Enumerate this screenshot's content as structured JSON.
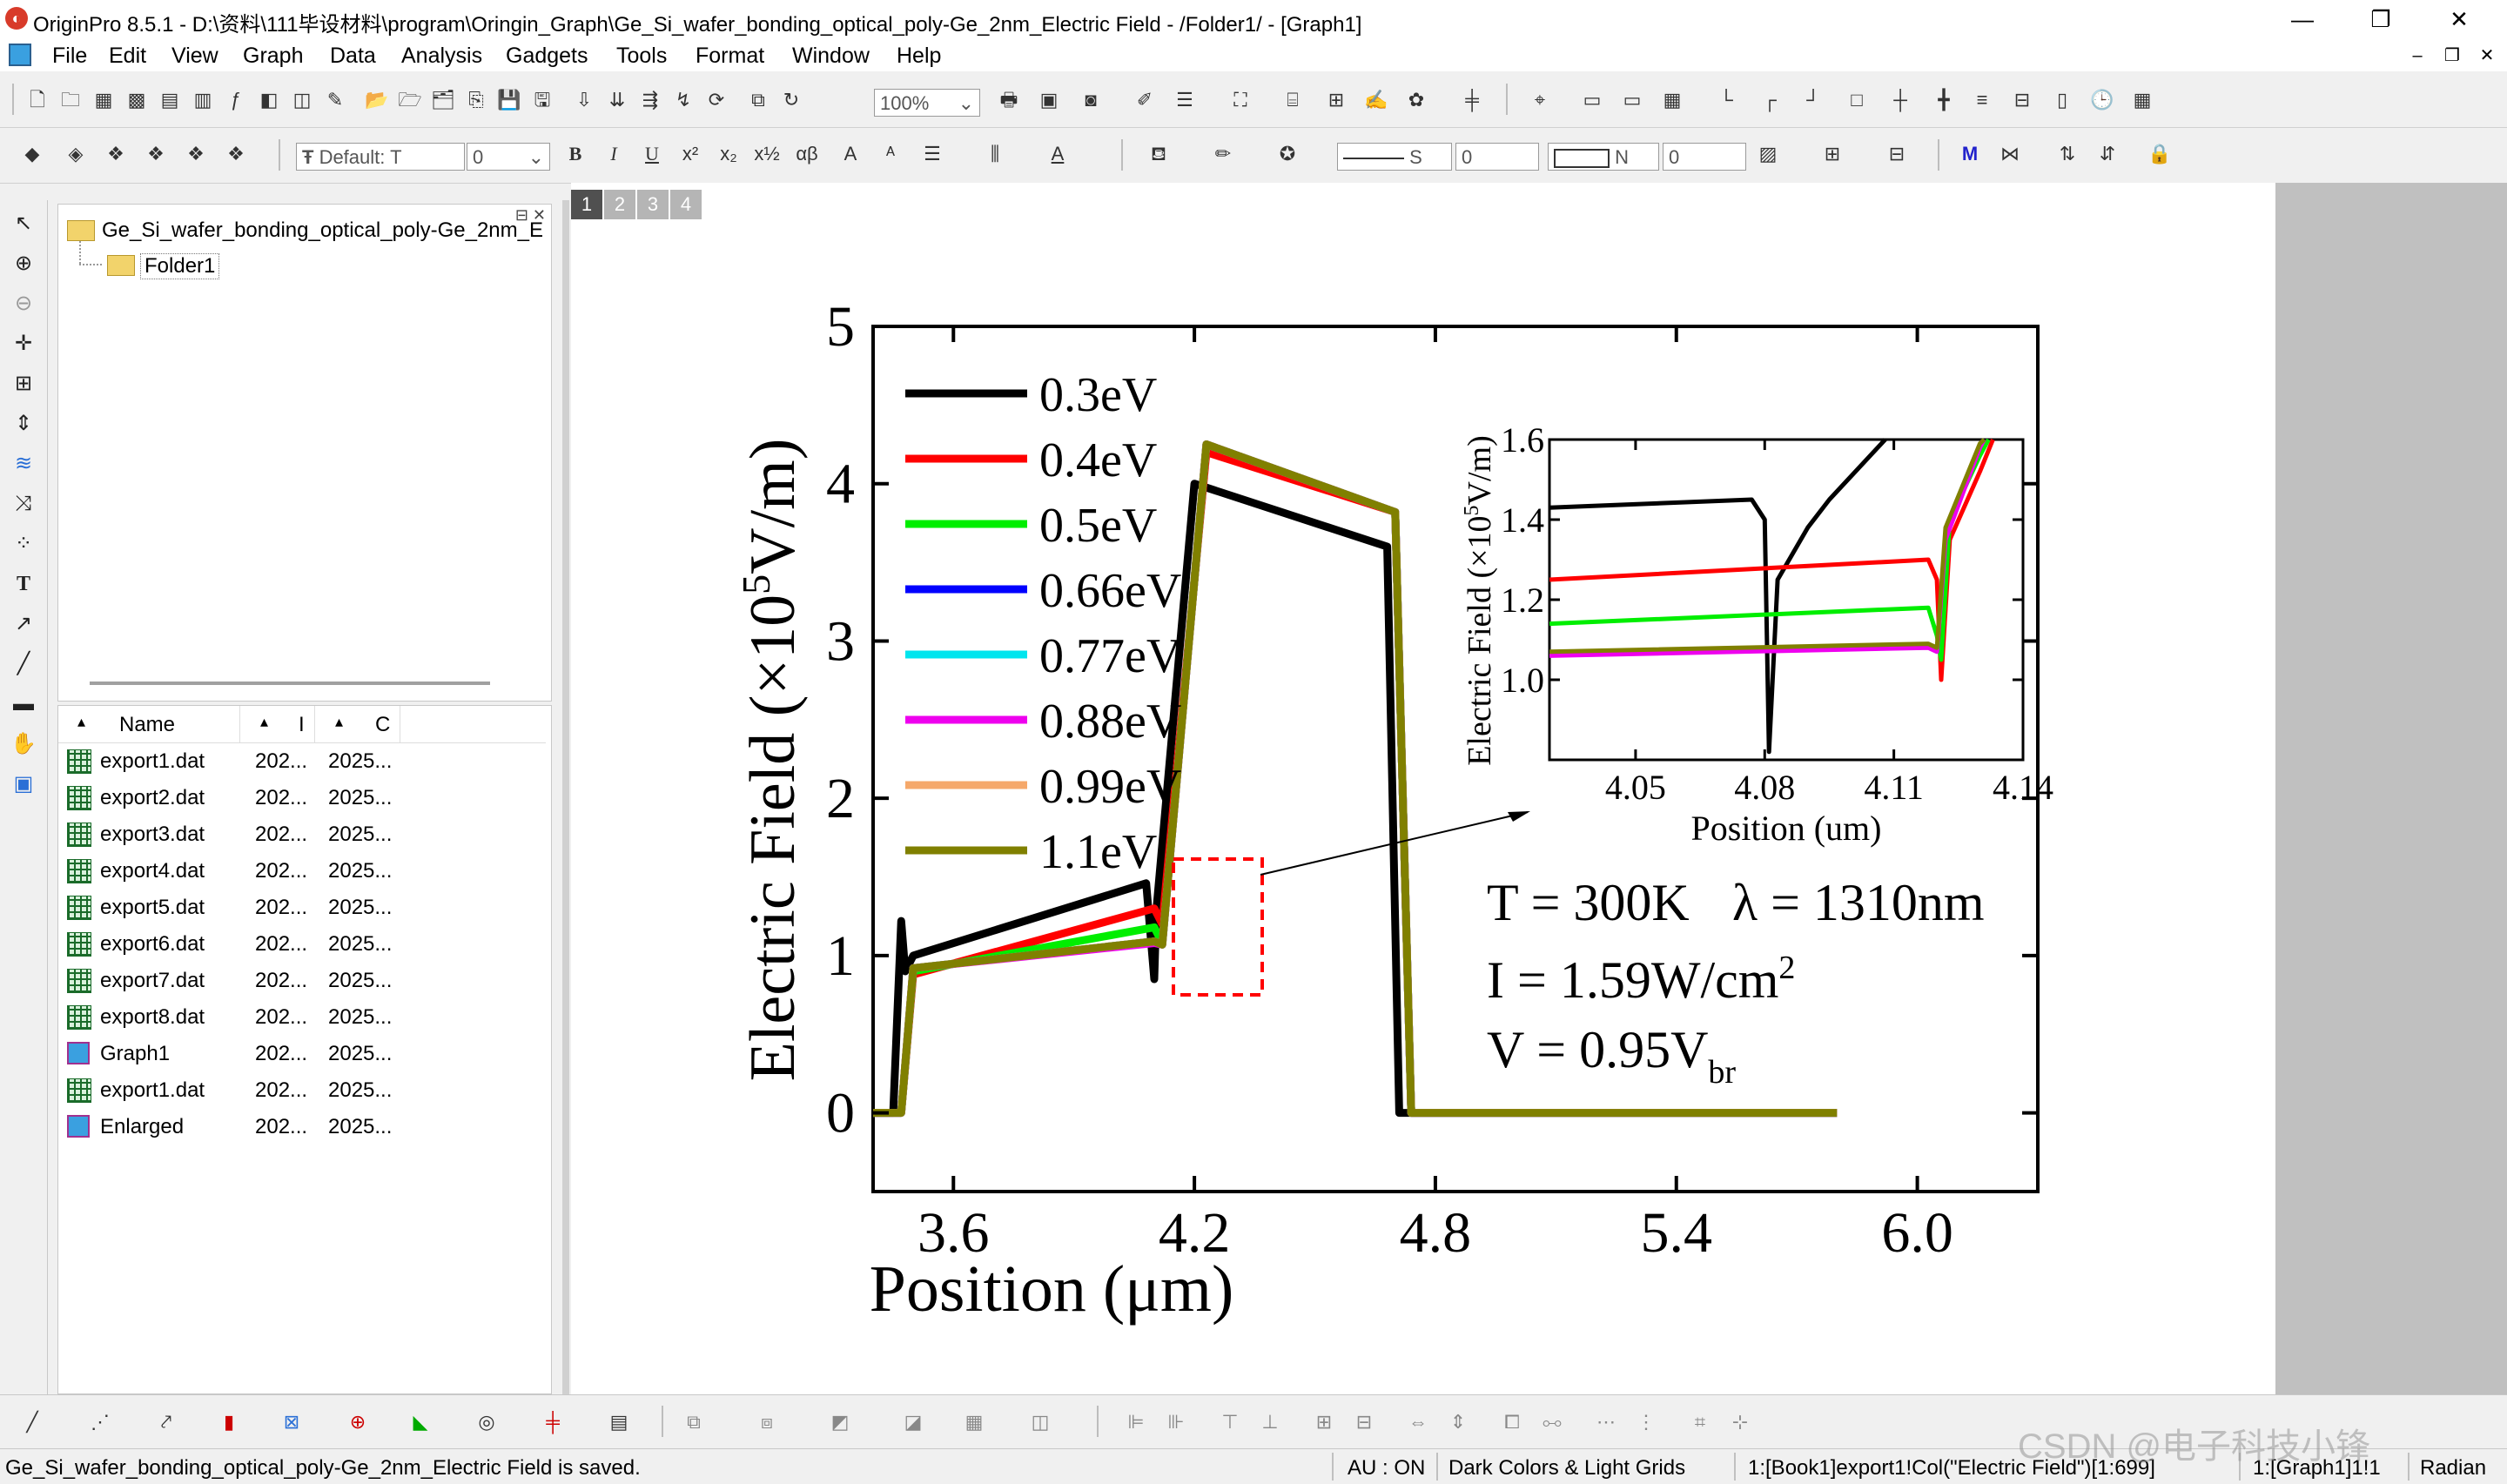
{
  "window": {
    "title": "OriginPro 8.5.1 - D:\\资料\\111毕设材料\\program\\Oringin_Graph\\Ge_Si_wafer_bonding_optical_poly-Ge_2nm_Electric Field - /Folder1/ - [Graph1]",
    "minimize": "—",
    "restore": "❐",
    "close": "✕"
  },
  "menu": [
    "File",
    "Edit",
    "View",
    "Graph",
    "Data",
    "Analysis",
    "Gadgets",
    "Tools",
    "Format",
    "Window",
    "Help"
  ],
  "toolbar": {
    "zoom": "100%",
    "font": "Default: T",
    "fontsize": "0",
    "line_style": "S",
    "line_width": "0",
    "fill": "N",
    "fill_val": "0"
  },
  "project": {
    "root": "Ge_Si_wafer_bonding_optical_poly-Ge_2nm_E",
    "folder": "Folder1"
  },
  "list": {
    "headers": [
      "Name",
      "I",
      "C"
    ],
    "rows": [
      {
        "name": "export1.dat",
        "c2": "202...",
        "c3": "2025...",
        "icon": "worksheet-icon"
      },
      {
        "name": "export2.dat",
        "c2": "202...",
        "c3": "2025...",
        "icon": "worksheet-icon"
      },
      {
        "name": "export3.dat",
        "c2": "202...",
        "c3": "2025...",
        "icon": "worksheet-icon"
      },
      {
        "name": "export4.dat",
        "c2": "202...",
        "c3": "2025...",
        "icon": "worksheet-icon"
      },
      {
        "name": "export5.dat",
        "c2": "202...",
        "c3": "2025...",
        "icon": "worksheet-icon"
      },
      {
        "name": "export6.dat",
        "c2": "202...",
        "c3": "2025...",
        "icon": "worksheet-icon"
      },
      {
        "name": "export7.dat",
        "c2": "202...",
        "c3": "2025...",
        "icon": "worksheet-icon"
      },
      {
        "name": "export8.dat",
        "c2": "202...",
        "c3": "2025...",
        "icon": "worksheet-icon"
      },
      {
        "name": "Graph1",
        "c2": "202...",
        "c3": "2025...",
        "icon": "graph-icon"
      },
      {
        "name": "export1.dat",
        "c2": "202...",
        "c3": "2025...",
        "icon": "worksheet-icon"
      },
      {
        "name": "Enlarged",
        "c2": "202...",
        "c3": "2025...",
        "icon": "graph-icon"
      }
    ]
  },
  "layers": [
    "1",
    "2",
    "3",
    "4"
  ],
  "chart_data": {
    "type": "line",
    "xlabel": "Position (μm)",
    "ylabel_prefix": "Electric Field (×10",
    "ylabel_sup": "5",
    "ylabel_suffix": "V/m)",
    "xlim": [
      3.4,
      6.3
    ],
    "ylim": [
      -0.5,
      5
    ],
    "xticks": [
      "3.6",
      "4.2",
      "4.8",
      "5.4",
      "6.0"
    ],
    "yticks": [
      "0",
      "1",
      "2",
      "3",
      "4",
      "5"
    ],
    "annotations": {
      "t": "T = 300K",
      "lambda": "λ = 1310nm",
      "i_prefix": "I = 1.59W/cm",
      "i_sup": "2",
      "v_prefix": "V = 0.95V",
      "v_sub": "br"
    },
    "series": [
      {
        "name": "0.3eV",
        "color": "#000000",
        "points": [
          [
            3.4,
            0
          ],
          [
            3.45,
            0
          ],
          [
            3.47,
            1.22
          ],
          [
            3.48,
            0.9
          ],
          [
            3.5,
            1.0
          ],
          [
            4.08,
            1.46
          ],
          [
            4.1,
            0.85
          ],
          [
            4.105,
            1.28
          ],
          [
            4.2,
            4.0
          ],
          [
            4.68,
            3.6
          ],
          [
            4.71,
            0
          ],
          [
            5.8,
            0
          ]
        ]
      },
      {
        "name": "0.4eV",
        "color": "#ff0000",
        "points": [
          [
            3.4,
            0
          ],
          [
            3.47,
            0
          ],
          [
            3.5,
            0.88
          ],
          [
            4.1,
            1.3
          ],
          [
            4.12,
            1.2
          ],
          [
            4.23,
            4.2
          ],
          [
            4.7,
            3.82
          ],
          [
            4.74,
            0
          ],
          [
            5.8,
            0
          ]
        ]
      },
      {
        "name": "0.5eV",
        "color": "#00ee00",
        "points": [
          [
            3.4,
            0
          ],
          [
            3.47,
            0
          ],
          [
            3.5,
            0.9
          ],
          [
            4.1,
            1.18
          ],
          [
            4.12,
            1.08
          ],
          [
            4.23,
            4.25
          ],
          [
            4.7,
            3.82
          ],
          [
            4.74,
            0
          ],
          [
            5.8,
            0
          ]
        ]
      },
      {
        "name": "0.66eV",
        "color": "#0000ff",
        "points": [
          [
            3.4,
            0
          ],
          [
            3.47,
            0
          ],
          [
            3.5,
            0.92
          ],
          [
            4.1,
            1.09
          ],
          [
            4.12,
            1.07
          ],
          [
            4.23,
            4.25
          ],
          [
            4.7,
            3.82
          ],
          [
            4.74,
            0
          ],
          [
            5.8,
            0
          ]
        ]
      },
      {
        "name": "0.77eV",
        "color": "#00e5ee",
        "points": [
          [
            3.4,
            0
          ],
          [
            3.47,
            0
          ],
          [
            3.5,
            0.92
          ],
          [
            4.1,
            1.09
          ],
          [
            4.12,
            1.07
          ],
          [
            4.23,
            4.25
          ],
          [
            4.7,
            3.82
          ],
          [
            4.74,
            0
          ],
          [
            5.8,
            0
          ]
        ]
      },
      {
        "name": "0.88eV",
        "color": "#ee00ee",
        "points": [
          [
            3.4,
            0
          ],
          [
            3.47,
            0
          ],
          [
            3.5,
            0.92
          ],
          [
            4.1,
            1.08
          ],
          [
            4.12,
            1.07
          ],
          [
            4.23,
            4.25
          ],
          [
            4.7,
            3.82
          ],
          [
            4.74,
            0
          ],
          [
            5.8,
            0
          ]
        ]
      },
      {
        "name": "0.99eV",
        "color": "#f5a86a",
        "points": [
          [
            3.4,
            0
          ],
          [
            3.47,
            0
          ],
          [
            3.5,
            0.92
          ],
          [
            4.1,
            1.09
          ],
          [
            4.12,
            1.07
          ],
          [
            4.23,
            4.25
          ],
          [
            4.7,
            3.82
          ],
          [
            4.74,
            0
          ],
          [
            5.8,
            0
          ]
        ]
      },
      {
        "name": "1.1eV",
        "color": "#808000",
        "points": [
          [
            3.4,
            0
          ],
          [
            3.47,
            0
          ],
          [
            3.5,
            0.92
          ],
          [
            4.1,
            1.09
          ],
          [
            4.12,
            1.07
          ],
          [
            4.23,
            4.25
          ],
          [
            4.7,
            3.82
          ],
          [
            4.74,
            0
          ],
          [
            5.8,
            0
          ]
        ]
      }
    ],
    "inset": {
      "xlabel": "Position (um)",
      "ylabel_prefix": "Electric Field (×10",
      "ylabel_sup": "5",
      "ylabel_suffix": "V/m)",
      "xlim": [
        4.03,
        4.14
      ],
      "ylim": [
        0.8,
        1.6
      ],
      "xticks": [
        "4.05",
        "4.08",
        "4.11",
        "4.14"
      ],
      "yticks": [
        "1.0",
        "1.2",
        "1.4",
        "1.6"
      ],
      "series": [
        {
          "color": "#000000",
          "points": [
            [
              4.03,
              1.43
            ],
            [
              4.077,
              1.45
            ],
            [
              4.08,
              1.4
            ],
            [
              4.081,
              0.82
            ],
            [
              4.083,
              1.25
            ],
            [
              4.09,
              1.38
            ],
            [
              4.095,
              1.45
            ],
            [
              4.108,
              1.6
            ]
          ]
        },
        {
          "color": "#ff0000",
          "points": [
            [
              4.03,
              1.25
            ],
            [
              4.118,
              1.3
            ],
            [
              4.12,
              1.25
            ],
            [
              4.121,
              1.0
            ],
            [
              4.123,
              1.35
            ],
            [
              4.13,
              1.52
            ],
            [
              4.133,
              1.6
            ]
          ]
        },
        {
          "color": "#00ee00",
          "points": [
            [
              4.03,
              1.14
            ],
            [
              4.118,
              1.18
            ],
            [
              4.12,
              1.11
            ],
            [
              4.121,
              1.05
            ],
            [
              4.123,
              1.4
            ],
            [
              4.13,
              1.56
            ],
            [
              4.132,
              1.6
            ]
          ]
        },
        {
          "color": "#ee00ee",
          "points": [
            [
              4.03,
              1.06
            ],
            [
              4.118,
              1.08
            ],
            [
              4.12,
              1.07
            ],
            [
              4.122,
              1.35
            ],
            [
              4.13,
              1.58
            ],
            [
              4.131,
              1.6
            ]
          ]
        },
        {
          "color": "#808000",
          "points": [
            [
              4.03,
              1.07
            ],
            [
              4.118,
              1.09
            ],
            [
              4.12,
              1.08
            ],
            [
              4.122,
              1.38
            ],
            [
              4.13,
              1.59
            ],
            [
              4.131,
              1.6
            ]
          ]
        }
      ]
    }
  },
  "status": {
    "saved": "Ge_Si_wafer_bonding_optical_poly-Ge_2nm_Electric Field is saved.",
    "au": "AU : ON",
    "theme": "Dark Colors & Light Grids",
    "cell": "1:[Book1]export1!Col(\"Electric Field\")[1:699]",
    "graph": "1:[Graph1]1!1",
    "angle": "Radian",
    "watermark": "CSDN @电子科技小锋"
  }
}
